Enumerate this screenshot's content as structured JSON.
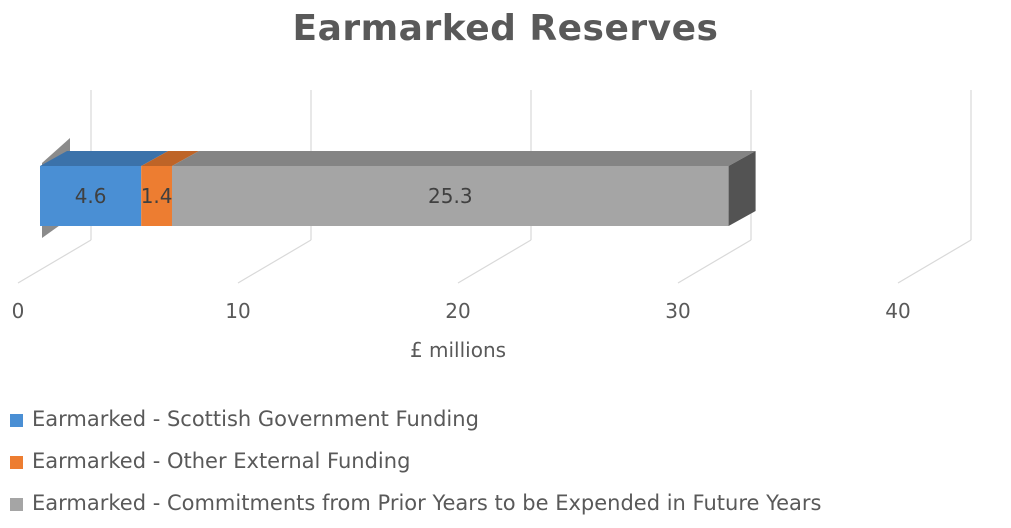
{
  "chart_data": {
    "type": "bar",
    "orientation": "horizontal",
    "stacked": true,
    "three_d": true,
    "title": "Earmarked Reserves",
    "xlabel": "£ millions",
    "ylabel": "",
    "xlim": [
      0,
      40
    ],
    "x_ticks": [
      "0",
      "10",
      "20",
      "30",
      "40"
    ],
    "x_tick_values": [
      0,
      10,
      20,
      30,
      40
    ],
    "grid": true,
    "legend_position": "bottom",
    "series": [
      {
        "name": "Earmarked - Scottish Government Funding",
        "values": [
          4.6
        ],
        "color": "#4a8fd4",
        "label": "4.6"
      },
      {
        "name": "Earmarked - Other External Funding",
        "values": [
          1.4
        ],
        "color": "#ed7d31",
        "label": "1.4"
      },
      {
        "name": "Earmarked - Commitments from Prior Years to be Expended in Future Years",
        "values": [
          25.3
        ],
        "color": "#a5a5a5",
        "label": "25.3"
      }
    ]
  }
}
